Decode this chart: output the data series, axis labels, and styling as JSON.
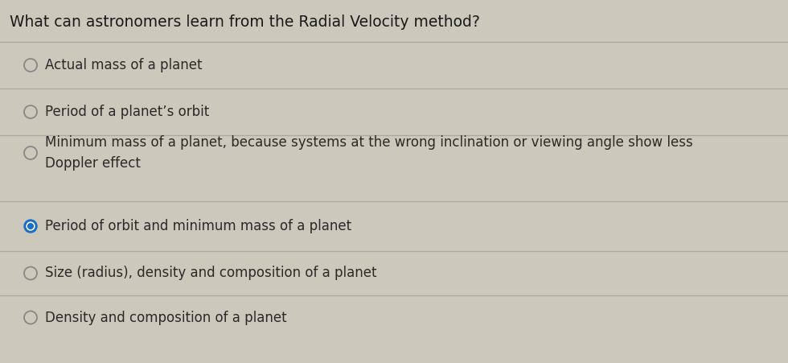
{
  "title": "What can astronomers learn from the Radial Velocity method?",
  "title_fontsize": 13.5,
  "options": [
    {
      "text": "Actual mass of a planet",
      "selected": false
    },
    {
      "text": "Period of a planet’s orbit",
      "selected": false
    },
    {
      "text": "Minimum mass of a planet, because systems at the wrong inclination or viewing angle show less\nDoppler effect",
      "selected": false
    },
    {
      "text": "Period of orbit and minimum mass of a planet",
      "selected": true
    },
    {
      "text": "Size (radius), density and composition of a planet",
      "selected": false
    },
    {
      "text": "Density and composition of a planet",
      "selected": false
    }
  ],
  "bg_color": "#cdc8bc",
  "text_color": "#1a1a1a",
  "option_text_color": "#2a2a2a",
  "selected_fill_color": "#1a6fc4",
  "selected_border_color": "#1a6fc4",
  "unselected_border_color": "#888888",
  "divider_color": "#aaa89f",
  "option_fontsize": 12,
  "fig_width": 9.8,
  "fig_height": 4.51,
  "dpi": 100
}
